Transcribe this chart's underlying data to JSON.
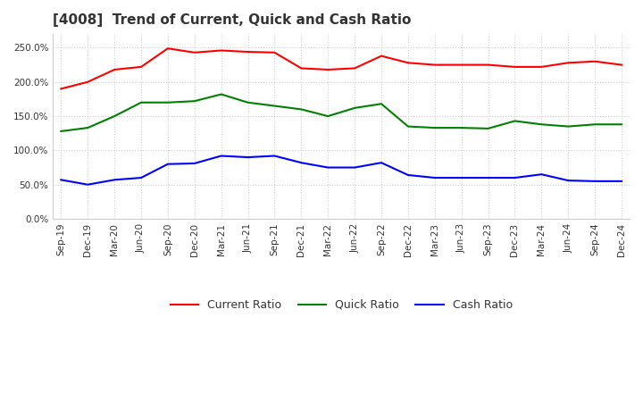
{
  "title": "[4008]  Trend of Current, Quick and Cash Ratio",
  "x_labels": [
    "Sep-19",
    "Dec-19",
    "Mar-20",
    "Jun-20",
    "Sep-20",
    "Dec-20",
    "Mar-21",
    "Jun-21",
    "Sep-21",
    "Dec-21",
    "Mar-22",
    "Jun-22",
    "Sep-22",
    "Dec-22",
    "Mar-23",
    "Jun-23",
    "Sep-23",
    "Dec-23",
    "Mar-24",
    "Jun-24",
    "Sep-24",
    "Dec-24"
  ],
  "current_ratio": [
    190,
    200,
    218,
    222,
    249,
    243,
    246,
    244,
    243,
    220,
    218,
    220,
    238,
    228,
    225,
    225,
    225,
    222,
    222,
    228,
    230,
    225
  ],
  "quick_ratio": [
    128,
    133,
    150,
    170,
    170,
    172,
    182,
    170,
    165,
    160,
    150,
    162,
    168,
    135,
    133,
    133,
    132,
    143,
    138,
    135,
    138,
    138
  ],
  "cash_ratio": [
    57,
    50,
    57,
    60,
    80,
    81,
    92,
    90,
    92,
    82,
    75,
    75,
    82,
    64,
    60,
    60,
    60,
    60,
    65,
    56,
    55,
    55
  ],
  "current_color": "#ff0000",
  "quick_color": "#008000",
  "cash_color": "#0000ff",
  "bg_color": "#ffffff",
  "grid_color": "#cccccc",
  "title_fontsize": 11,
  "tick_fontsize": 7.5,
  "legend_fontsize": 9
}
